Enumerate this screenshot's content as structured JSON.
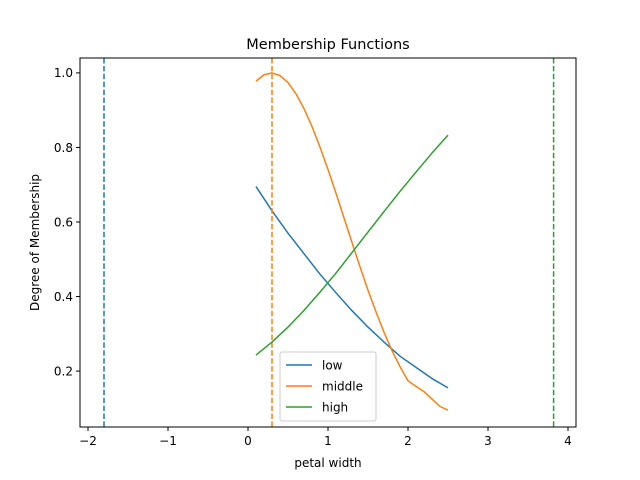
{
  "chart_data": {
    "type": "line",
    "title": "Membership Functions",
    "xlabel": "petal width",
    "ylabel": "Degree of Membership",
    "xlim": [
      -2.1,
      4.1
    ],
    "ylim": [
      0.05,
      1.04
    ],
    "xticks": [
      -2,
      -1,
      0,
      1,
      2,
      3,
      4
    ],
    "xtick_labels": [
      "−2",
      "−1",
      "0",
      "1",
      "2",
      "3",
      "4"
    ],
    "yticks": [
      0.2,
      0.4,
      0.6,
      0.8,
      1.0
    ],
    "ytick_labels": [
      "0.2",
      "0.4",
      "0.6",
      "0.8",
      "1.0"
    ],
    "grid": false,
    "legend_position": "bottom-center",
    "series": [
      {
        "name": "low",
        "color": "#1f77b4",
        "center": -1.8,
        "x": [
          0.1,
          0.3,
          0.5,
          0.7,
          0.9,
          1.1,
          1.3,
          1.5,
          1.7,
          1.9,
          2.1,
          2.3,
          2.5
        ],
        "y": [
          0.695,
          0.63,
          0.57,
          0.515,
          0.46,
          0.41,
          0.362,
          0.318,
          0.278,
          0.24,
          0.21,
          0.18,
          0.155
        ]
      },
      {
        "name": "middle",
        "color": "#ff7f0e",
        "center": 0.3,
        "x": [
          0.1,
          0.2,
          0.3,
          0.4,
          0.5,
          0.6,
          0.7,
          0.8,
          0.9,
          1.0,
          1.1,
          1.2,
          1.3,
          1.4,
          1.5,
          1.6,
          1.7,
          1.8,
          1.9,
          2.0,
          2.1,
          2.2,
          2.3,
          2.4,
          2.5
        ],
        "y": [
          0.978,
          0.995,
          1.0,
          0.993,
          0.974,
          0.944,
          0.904,
          0.856,
          0.801,
          0.741,
          0.677,
          0.611,
          0.545,
          0.48,
          0.417,
          0.359,
          0.304,
          0.255,
          0.212,
          0.174,
          0.159,
          0.145,
          0.125,
          0.105,
          0.095
        ]
      },
      {
        "name": "high",
        "color": "#2ca02c",
        "center": 3.82,
        "x": [
          0.1,
          0.3,
          0.5,
          0.7,
          0.9,
          1.1,
          1.3,
          1.5,
          1.7,
          1.9,
          2.1,
          2.3,
          2.5
        ],
        "y": [
          0.243,
          0.278,
          0.318,
          0.363,
          0.412,
          0.463,
          0.518,
          0.573,
          0.628,
          0.682,
          0.734,
          0.785,
          0.833
        ]
      }
    ]
  }
}
